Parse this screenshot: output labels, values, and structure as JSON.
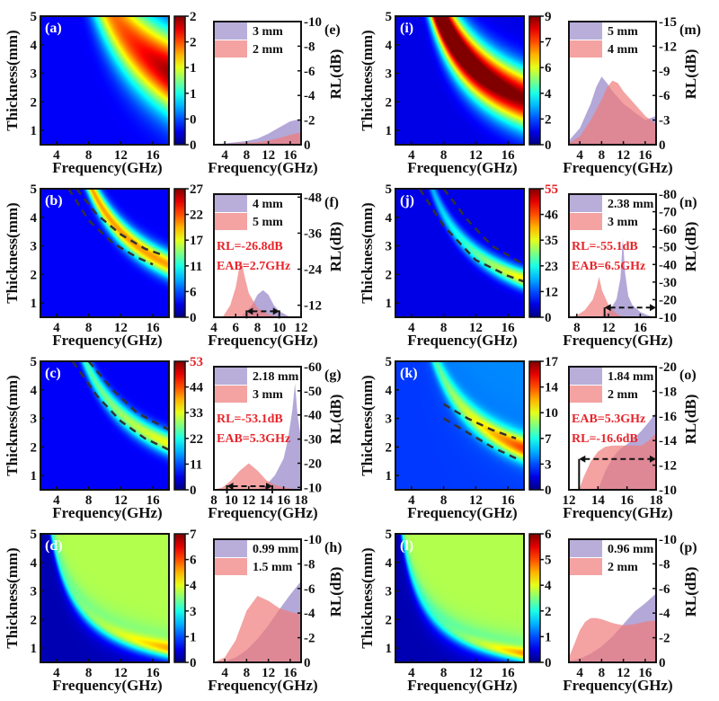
{
  "chart_data": [
    {
      "type": "heatmap",
      "label": "(a)",
      "xlabel": "Frequency(GHz)",
      "ylabel": "Thickness(mm)",
      "xlim": [
        2,
        18
      ],
      "ylim": [
        0.5,
        5
      ],
      "xticks": [
        4,
        8,
        12,
        16
      ],
      "yticks": [
        1,
        2,
        3,
        4,
        5
      ],
      "colorbar_ticks": [
        "0",
        "0",
        "1",
        "1",
        "2",
        "2"
      ],
      "colorbar_top_red": false,
      "contours": []
    },
    {
      "type": "heatmap",
      "label": "(b)",
      "xlabel": "Frequency(GHz)",
      "ylabel": "Thickness(mm)",
      "xlim": [
        2,
        18
      ],
      "ylim": [
        0.5,
        5
      ],
      "xticks": [
        4,
        8,
        12,
        16
      ],
      "yticks": [
        1,
        2,
        3,
        4,
        5
      ],
      "colorbar_ticks": [
        "0",
        "6",
        "11",
        "17",
        "22",
        "27"
      ],
      "colorbar_top_red": false,
      "contours": [
        [
          [
            6.5,
            5
          ],
          [
            9,
            4.1
          ],
          [
            12,
            3.4
          ],
          [
            15,
            2.9
          ],
          [
            17,
            2.7
          ]
        ],
        [
          [
            5.5,
            5
          ],
          [
            8,
            3.9
          ],
          [
            11,
            3.1
          ],
          [
            14,
            2.6
          ],
          [
            16,
            2.35
          ]
        ]
      ]
    },
    {
      "type": "heatmap",
      "label": "(c)",
      "xlabel": "Frequency(GHz)",
      "ylabel": "Thickness(mm)",
      "xlim": [
        2,
        18
      ],
      "ylim": [
        0.5,
        5
      ],
      "xticks": [
        4,
        8,
        12,
        16
      ],
      "yticks": [
        1,
        2,
        3,
        4,
        5
      ],
      "colorbar_ticks": [
        "0",
        "11",
        "22",
        "33",
        "44",
        "53"
      ],
      "colorbar_top_red": true,
      "contours": [
        [
          [
            8,
            5
          ],
          [
            11,
            4.0
          ],
          [
            14,
            3.2
          ],
          [
            18,
            2.6
          ]
        ],
        [
          [
            6,
            5
          ],
          [
            9,
            3.8
          ],
          [
            12,
            2.9
          ],
          [
            15,
            2.3
          ],
          [
            18,
            1.9
          ]
        ]
      ]
    },
    {
      "type": "heatmap",
      "label": "(d)",
      "xlabel": "Frequency(GHz)",
      "ylabel": "Thickness(mm)",
      "xlim": [
        2,
        18
      ],
      "ylim": [
        0.5,
        5
      ],
      "xticks": [
        4,
        8,
        12,
        16
      ],
      "yticks": [
        1,
        2,
        3,
        4,
        5
      ],
      "colorbar_ticks": [
        "0",
        "1",
        "3",
        "4",
        "6",
        "7"
      ],
      "colorbar_top_red": false,
      "contours": []
    },
    {
      "type": "area",
      "label": "(e)",
      "xlabel": "Frequency(GHz)",
      "ylabel": "RL(dB)",
      "xlim": [
        2,
        18
      ],
      "ylim": [
        0,
        -10
      ],
      "xticks": [
        4,
        8,
        12,
        16
      ],
      "yticks": [
        0,
        -2,
        -4,
        -6,
        -8,
        -10
      ],
      "series": [
        {
          "name": "3 mm",
          "color": "#9b8bcb",
          "x": [
            2,
            4,
            6,
            8,
            10,
            12,
            14,
            16,
            18
          ],
          "y": [
            0,
            -0.1,
            -0.2,
            -0.3,
            -0.5,
            -0.9,
            -1.4,
            -1.9,
            -2.1
          ]
        },
        {
          "name": "2 mm",
          "color": "#ef7b7b",
          "x": [
            2,
            4,
            6,
            8,
            10,
            12,
            14,
            16,
            18
          ],
          "y": [
            0,
            -0.05,
            -0.1,
            -0.15,
            -0.2,
            -0.35,
            -0.55,
            -0.8,
            -1.0
          ]
        }
      ],
      "annotations": [],
      "eab": null
    },
    {
      "type": "area",
      "label": "(f)",
      "xlabel": "Frequency(GHz)",
      "ylabel": "RL(dB)",
      "xlim": [
        4,
        12
      ],
      "ylim": [
        -8,
        -49
      ],
      "xticks": [
        4,
        6,
        8,
        10,
        12
      ],
      "yticks": [
        -12,
        -24,
        -36,
        -48
      ],
      "series": [
        {
          "name": "4 mm",
          "color": "#9b8bcb",
          "x": [
            6.5,
            7.5,
            8,
            8.5,
            9,
            9.5,
            10,
            11
          ],
          "y": [
            -8,
            -12,
            -15.5,
            -17,
            -15.5,
            -12,
            -10,
            -8
          ]
        },
        {
          "name": "5 mm",
          "color": "#ef7b7b",
          "x": [
            4.8,
            5.5,
            6,
            6.3,
            6.5,
            6.8,
            7.2,
            8,
            9,
            10
          ],
          "y": [
            -8,
            -12,
            -18,
            -24,
            -27,
            -22,
            -16,
            -11,
            -9,
            -8
          ]
        }
      ],
      "annotations": [
        "RL=-26.8dB",
        "EAB=2.7GHz"
      ],
      "eab": {
        "from": 7,
        "to": 10,
        "level": -10,
        "left_bar": false
      }
    },
    {
      "type": "area",
      "label": "(g)",
      "xlabel": "Frequency(GHz)",
      "ylabel": "RL(dB)",
      "xlim": [
        8,
        18
      ],
      "ylim": [
        -9,
        -60
      ],
      "xticks": [
        8,
        10,
        12,
        14,
        16,
        18
      ],
      "yticks": [
        -10,
        -20,
        -30,
        -40,
        -50,
        -60
      ],
      "series": [
        {
          "name": "2.18 mm",
          "color": "#9b8bcb",
          "x": [
            13,
            14,
            15,
            16,
            16.5,
            17,
            17.3,
            17.6,
            18
          ],
          "y": [
            -9,
            -11,
            -15,
            -22,
            -30,
            -42,
            -53,
            -40,
            -30
          ]
        },
        {
          "name": "3 mm",
          "color": "#ef7b7b",
          "x": [
            8,
            9,
            10,
            11,
            12,
            13,
            14,
            15,
            16,
            17,
            18
          ],
          "y": [
            -9,
            -10,
            -13,
            -17,
            -20,
            -17,
            -13,
            -11,
            -10,
            -9.5,
            -9
          ]
        }
      ],
      "annotations": [
        "RL=-53.1dB",
        "EAB=5.3GHz"
      ],
      "eab": {
        "from": 9.5,
        "to": 14.7,
        "level": -10.5,
        "left_bar": false
      }
    },
    {
      "type": "area",
      "label": "(h)",
      "xlabel": "Frequency(GHz)",
      "ylabel": "RL(dB)",
      "xlim": [
        2,
        18
      ],
      "ylim": [
        0,
        -10
      ],
      "xticks": [
        4,
        8,
        12,
        16
      ],
      "yticks": [
        0,
        -2,
        -4,
        -6,
        -8,
        -10
      ],
      "series": [
        {
          "name": "0.99 mm",
          "color": "#9b8bcb",
          "x": [
            2,
            4,
            6,
            8,
            10,
            12,
            14,
            16,
            18
          ],
          "y": [
            0,
            -0.1,
            -0.4,
            -1,
            -1.9,
            -3,
            -4.3,
            -5.5,
            -6.6
          ]
        },
        {
          "name": "1.5 mm",
          "color": "#ef7b7b",
          "x": [
            2,
            4,
            6,
            8,
            10,
            12,
            14,
            16,
            18
          ],
          "y": [
            0,
            -0.4,
            -1.8,
            -4.2,
            -5.4,
            -5.0,
            -4.4,
            -4.1,
            -3.9
          ]
        }
      ],
      "annotations": [],
      "eab": null
    },
    {
      "type": "heatmap",
      "label": "(i)",
      "xlabel": "Frequency(GHz)",
      "ylabel": "Thickness(mm)",
      "xlim": [
        2,
        18
      ],
      "ylim": [
        0.5,
        5
      ],
      "xticks": [
        4,
        8,
        12,
        16
      ],
      "yticks": [
        1,
        2,
        3,
        4,
        5
      ],
      "colorbar_ticks": [
        "0",
        "2",
        "4",
        "6",
        "7",
        "9"
      ],
      "colorbar_top_red": false,
      "contours": []
    },
    {
      "type": "heatmap",
      "label": "(j)",
      "xlabel": "Frequency(GHz)",
      "ylabel": "Thickness(mm)",
      "xlim": [
        2,
        18
      ],
      "ylim": [
        0.5,
        5
      ],
      "xticks": [
        4,
        8,
        12,
        16
      ],
      "yticks": [
        1,
        2,
        3,
        4,
        5
      ],
      "colorbar_ticks": [
        "0",
        "12",
        "23",
        "35",
        "46",
        "55"
      ],
      "colorbar_top_red": true,
      "contours": [
        [
          [
            8,
            5
          ],
          [
            11,
            3.9
          ],
          [
            14,
            3.0
          ],
          [
            18,
            2.35
          ]
        ],
        [
          [
            5,
            5
          ],
          [
            8,
            3.7
          ],
          [
            12,
            2.5
          ],
          [
            16,
            1.95
          ],
          [
            18,
            1.75
          ]
        ]
      ]
    },
    {
      "type": "heatmap",
      "label": "(k)",
      "xlabel": "Frequency(GHz)",
      "ylabel": "Thickness(mm)",
      "xlim": [
        2,
        18
      ],
      "ylim": [
        0.5,
        5
      ],
      "xticks": [
        4,
        8,
        12,
        16
      ],
      "yticks": [
        1,
        2,
        3,
        4,
        5
      ],
      "colorbar_ticks": [
        "0",
        "3",
        "7",
        "10",
        "14",
        "17"
      ],
      "colorbar_top_red": false,
      "contours": [
        [
          [
            8,
            3.5
          ],
          [
            11,
            3.0
          ],
          [
            14,
            2.6
          ],
          [
            17,
            2.3
          ]
        ],
        [
          [
            8,
            3.0
          ],
          [
            11,
            2.5
          ],
          [
            14,
            2.0
          ],
          [
            17,
            1.6
          ]
        ]
      ]
    },
    {
      "type": "heatmap",
      "label": "(l)",
      "xlabel": "Frequency(GHz)",
      "ylabel": "Thickness(mm)",
      "xlim": [
        2,
        18
      ],
      "ylim": [
        0.5,
        5
      ],
      "xticks": [
        4,
        8,
        12,
        16
      ],
      "yticks": [
        1,
        2,
        3,
        4,
        5
      ],
      "colorbar_ticks": [
        "0",
        "1",
        "2",
        "4",
        "5",
        "6"
      ],
      "colorbar_top_red": false,
      "contours": []
    },
    {
      "type": "area",
      "label": "(m)",
      "xlabel": "Frequency(GHz)",
      "ylabel": "RL(dB)",
      "xlim": [
        2,
        18
      ],
      "ylim": [
        0,
        -15
      ],
      "xticks": [
        4,
        8,
        12,
        16
      ],
      "yticks": [
        0,
        -3,
        -6,
        -9,
        -12,
        -15
      ],
      "series": [
        {
          "name": "5 mm",
          "color": "#9b8bcb",
          "x": [
            2,
            4,
            6,
            7,
            8,
            9,
            10,
            12,
            14,
            16,
            18
          ],
          "y": [
            -0.5,
            -2,
            -5,
            -7,
            -8.3,
            -7.5,
            -6.5,
            -5,
            -4,
            -3,
            -3.5
          ]
        },
        {
          "name": "4 mm",
          "color": "#ef7b7b",
          "x": [
            2,
            4,
            6,
            8,
            9,
            10,
            11,
            12,
            14,
            16,
            18
          ],
          "y": [
            -0.2,
            -1,
            -3,
            -5.5,
            -7,
            -7.8,
            -7.5,
            -6.5,
            -5,
            -3.5,
            -2.5
          ]
        }
      ],
      "annotations": [],
      "eab": null
    },
    {
      "type": "area",
      "label": "(n)",
      "xlabel": "Frequency(GHz)",
      "ylabel": "RL(dB)",
      "xlim": [
        7,
        18
      ],
      "ylim": [
        -10,
        -80
      ],
      "xticks": [
        8,
        12,
        16
      ],
      "yticks": [
        -10,
        -20,
        -30,
        -40,
        -50,
        -60,
        -70,
        -80
      ],
      "series": [
        {
          "name": "2.38 mm",
          "color": "#9b8bcb",
          "x": [
            11,
            12,
            13,
            13.5,
            13.8,
            14.1,
            14.5,
            15,
            16,
            17,
            18
          ],
          "y": [
            -10,
            -13,
            -20,
            -32,
            -55,
            -35,
            -22,
            -17,
            -13,
            -11,
            -10
          ]
        },
        {
          "name": "3 mm",
          "color": "#ef7b7b",
          "x": [
            7,
            8,
            9,
            10,
            10.5,
            10.8,
            11.2,
            12,
            13,
            14
          ],
          "y": [
            -10,
            -11,
            -14,
            -20,
            -27,
            -33,
            -25,
            -17,
            -12,
            -10
          ]
        }
      ],
      "annotations": [
        "RL=-55.1dB",
        "EAB=6.5GHz"
      ],
      "eab": {
        "from": 11.5,
        "to": 18,
        "level": -15.5,
        "left_bar": true
      }
    },
    {
      "type": "area",
      "label": "(o)",
      "xlabel": "Frequency(GHz)",
      "ylabel": "RL(dB)",
      "xlim": [
        12,
        18
      ],
      "ylim": [
        -10,
        -20
      ],
      "xticks": [
        12,
        14,
        16,
        18
      ],
      "yticks": [
        -10,
        -12,
        -14,
        -16,
        -18,
        -20
      ],
      "series": [
        {
          "name": "1.84 mm",
          "color": "#9b8bcb",
          "x": [
            14,
            14.5,
            15,
            15.5,
            16,
            16.5,
            17,
            17.5,
            18
          ],
          "y": [
            -10,
            -11.5,
            -12.6,
            -13.3,
            -13.7,
            -14.2,
            -14.8,
            -15.5,
            -16.3
          ]
        },
        {
          "name": "2 mm",
          "color": "#ef7b7b",
          "x": [
            12.7,
            13,
            13.5,
            14,
            14.5,
            15,
            16,
            17,
            17.5,
            18
          ],
          "y": [
            -10,
            -11,
            -12.3,
            -13.1,
            -13.5,
            -13.6,
            -13.6,
            -13.6,
            -14,
            -14.6
          ]
        }
      ],
      "annotations": [
        "EAB=5.3GHz",
        "RL=-16.6dB"
      ],
      "eab": {
        "from": 12.7,
        "to": 18,
        "level": -12.5,
        "left_bar": true
      }
    },
    {
      "type": "area",
      "label": "(p)",
      "xlabel": "Frequency(GHz)",
      "ylabel": "RL(dB)",
      "xlim": [
        2,
        18
      ],
      "ylim": [
        0,
        -10
      ],
      "xticks": [
        4,
        8,
        12,
        16
      ],
      "yticks": [
        0,
        -2,
        -4,
        -6,
        -8,
        -10
      ],
      "series": [
        {
          "name": "0.96 mm",
          "color": "#9b8bcb",
          "x": [
            2,
            4,
            6,
            8,
            10,
            12,
            14,
            16,
            18
          ],
          "y": [
            -0.1,
            -0.3,
            -0.7,
            -1.3,
            -2.1,
            -3.1,
            -4.1,
            -4.8,
            -5.6
          ]
        },
        {
          "name": "2 mm",
          "color": "#ef7b7b",
          "x": [
            2,
            3,
            4,
            5,
            6,
            7,
            8,
            10,
            12,
            14,
            16,
            18
          ],
          "y": [
            -0.4,
            -1.5,
            -2.6,
            -3.3,
            -3.6,
            -3.6,
            -3.5,
            -3.2,
            -3,
            -3.1,
            -3.3,
            -3.4
          ]
        }
      ],
      "annotations": [],
      "eab": null
    }
  ]
}
